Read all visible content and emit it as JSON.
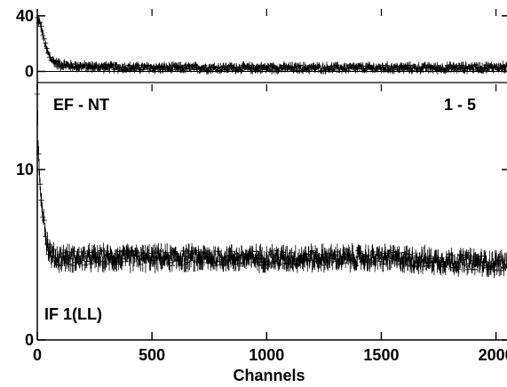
{
  "chart_data": [
    {
      "type": "scatter",
      "panel": "top",
      "label_left": "EF - NT",
      "label_right": "1 - 5",
      "xlim": [
        0,
        2048
      ],
      "ylim": [
        -8,
        45
      ],
      "yticks": [
        0,
        40
      ],
      "ytick_labels": [
        "0",
        "40"
      ],
      "zero_line": true,
      "error_bars": true,
      "series": [
        {
          "x": [
            0,
            10,
            20,
            30,
            40,
            50,
            60,
            80,
            100,
            150,
            200,
            300,
            500,
            800,
            1000,
            1200,
            1500,
            1800,
            2000,
            2048
          ],
          "y": [
            38,
            35,
            30,
            22,
            16,
            12,
            9,
            6,
            5,
            4,
            3.5,
            3,
            2.5,
            2.5,
            2.5,
            2.5,
            2.5,
            2.5,
            3,
            3
          ]
        }
      ]
    },
    {
      "type": "scatter",
      "panel": "bottom",
      "label_left": "IF 1(LL)",
      "xlabel": "Channels",
      "xlim": [
        0,
        2048
      ],
      "ylim": [
        0,
        15
      ],
      "xticks": [
        0,
        500,
        1000,
        1500,
        2000
      ],
      "xtick_labels": [
        "0",
        "500",
        "1000",
        "1500",
        "2000"
      ],
      "yticks": [
        0,
        10
      ],
      "ytick_labels": [
        "0",
        "10"
      ],
      "error_bars": true,
      "series": [
        {
          "x": [
            0,
            5,
            10,
            20,
            30,
            40,
            50,
            60,
            80,
            100,
            200,
            500,
            1000,
            1500,
            2000,
            2048
          ],
          "y": [
            14,
            11,
            9.5,
            8,
            7,
            5.8,
            5.3,
            5.0,
            4.8,
            4.8,
            4.8,
            4.8,
            4.8,
            4.8,
            4.5,
            4.5
          ]
        }
      ]
    }
  ]
}
